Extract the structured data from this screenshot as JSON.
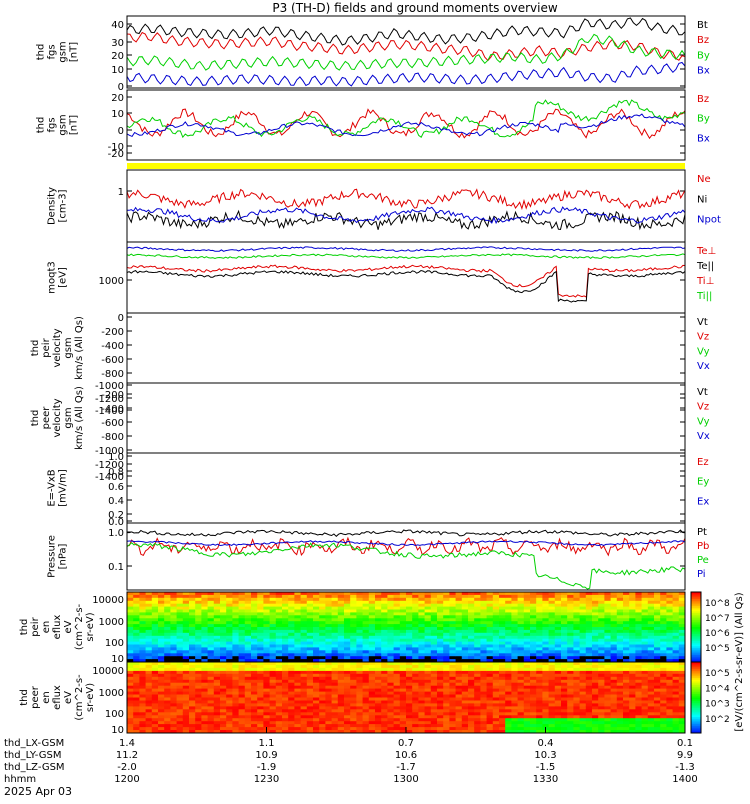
{
  "title": "P3 (TH-D) fields and ground moments overview",
  "date_label": "2025 Apr 03",
  "colors": {
    "black": "#000000",
    "red": "#e00000",
    "green": "#00d000",
    "blue": "#0000d0",
    "yellow": "#ffff00"
  },
  "panels": [
    {
      "id": "fgs-mag",
      "ylabel": [
        "thd",
        "fgs",
        "gsm",
        "[nT]"
      ],
      "yticks": [
        "40",
        "30",
        "20",
        "10",
        "0"
      ],
      "ylim": [
        -2,
        44
      ],
      "legend": [
        {
          "label": "Bt",
          "color": "black"
        },
        {
          "label": "Bz",
          "color": "red"
        },
        {
          "label": "By",
          "color": "green"
        },
        {
          "label": "Bx",
          "color": "blue"
        }
      ]
    },
    {
      "id": "fgs-gsm",
      "ylabel": [
        "thd",
        "fgs",
        "gsm",
        "[nT]"
      ],
      "yticks": [
        "20",
        "10",
        "0",
        "-10",
        "-20"
      ],
      "ylim": [
        -25,
        27
      ],
      "legend": [
        {
          "label": "Bz",
          "color": "red"
        },
        {
          "label": "By",
          "color": "green"
        },
        {
          "label": "Bx",
          "color": "blue"
        }
      ]
    },
    {
      "id": "density",
      "ylabel": [
        "Density",
        "[cm-3]"
      ],
      "yticks": [
        "1"
      ],
      "scale": "log",
      "legend": [
        {
          "label": "Ne",
          "color": "red"
        },
        {
          "label": "Ni",
          "color": "black"
        },
        {
          "label": "Npot",
          "color": "blue"
        }
      ]
    },
    {
      "id": "temperature",
      "ylabel": [
        "moqt3",
        "[eV]"
      ],
      "yticks": [
        "1000"
      ],
      "scale": "log",
      "legend": [
        {
          "label": "Te⊥",
          "color": "red"
        },
        {
          "label": "Te||",
          "color": "black"
        },
        {
          "label": "Ti⊥",
          "color": "red"
        },
        {
          "label": "Ti||",
          "color": "green"
        }
      ]
    },
    {
      "id": "peir-velocity",
      "ylabel": [
        "thd",
        "peir",
        "velocity",
        "gsm",
        "km/s (All Qs)"
      ],
      "yticks": [
        "0",
        "-200",
        "-400",
        "-600",
        "-800",
        "-1000",
        "-1200",
        "-1400"
      ],
      "legend": [
        {
          "label": "Vt",
          "color": "black"
        },
        {
          "label": "Vz",
          "color": "red"
        },
        {
          "label": "Vy",
          "color": "green"
        },
        {
          "label": "Vx",
          "color": "blue"
        }
      ]
    },
    {
      "id": "peer-velocity",
      "ylabel": [
        "thd",
        "peer",
        "velocity",
        "gsm",
        "km/s (All Qs)"
      ],
      "yticks": [
        "-200",
        "-400",
        "-600",
        "-800",
        "-1000",
        "-1200",
        "-1400"
      ],
      "legend": [
        {
          "label": "Vt",
          "color": "black"
        },
        {
          "label": "Vz",
          "color": "red"
        },
        {
          "label": "Vy",
          "color": "green"
        },
        {
          "label": "Vx",
          "color": "blue"
        }
      ]
    },
    {
      "id": "efield",
      "ylabel": [
        "E=-VxB",
        "[mV/m]"
      ],
      "yticks": [
        "1.0",
        "0.8",
        "0.6",
        "0.4",
        "0.2",
        "0.0"
      ],
      "legend": [
        {
          "label": "Ez",
          "color": "red"
        },
        {
          "label": "Ey",
          "color": "green"
        },
        {
          "label": "Ex",
          "color": "blue"
        }
      ]
    },
    {
      "id": "pressure",
      "ylabel": [
        "Pressure",
        "[nPa]"
      ],
      "yticks": [
        "1.0",
        "0.1"
      ],
      "scale": "log",
      "legend": [
        {
          "label": "Pt",
          "color": "black"
        },
        {
          "label": "Pb",
          "color": "red"
        },
        {
          "label": "Pe",
          "color": "green"
        },
        {
          "label": "Pi",
          "color": "blue"
        }
      ]
    },
    {
      "id": "peir-spec",
      "ylabel": [
        "thd",
        "peir",
        "en",
        "eflux",
        "eV",
        "(cm^2-s-",
        "sr-eV)"
      ],
      "yticks": [
        "10000",
        "1000",
        "100",
        "10"
      ]
    },
    {
      "id": "peer-spec",
      "ylabel": [
        "thd",
        "peer",
        "en",
        "eflux",
        "eV",
        "(cm^2-s-",
        "sr-eV)"
      ],
      "yticks": [
        "10000",
        "1000",
        "100",
        "10"
      ]
    }
  ],
  "colorbar": {
    "label": "[eV/(cm^2-s-sr-eV)] (All Qs)",
    "ticks_top": [
      "10^8",
      "10^7",
      "10^6",
      "10^5"
    ],
    "ticks_bottom": [
      "10^5",
      "10^4",
      "10^3",
      "10^2"
    ]
  },
  "x_axis": {
    "rows": [
      {
        "name": "thd_LX-GSM",
        "values": [
          "1.4",
          "1.1",
          "0.7",
          "0.4",
          "0.1"
        ]
      },
      {
        "name": "thd_LY-GSM",
        "values": [
          "11.2",
          "10.9",
          "10.6",
          "10.3",
          "9.9"
        ]
      },
      {
        "name": "thd_LZ-GSM",
        "values": [
          "-2.0",
          "-1.9",
          "-1.7",
          "-1.5",
          "-1.3"
        ]
      },
      {
        "name": "hhmm",
        "values": [
          "1200",
          "1230",
          "1300",
          "1330",
          "1400"
        ]
      }
    ]
  },
  "chart_data": {
    "type": "line",
    "title": "P3 (TH-D) fields and ground moments overview",
    "x_ticks": [
      "1200",
      "1230",
      "1300",
      "1330",
      "1400"
    ],
    "series": [
      {
        "name": "Bt",
        "values": [
          35,
          36,
          34,
          33,
          32,
          33,
          35,
          32,
          30,
          28,
          30,
          33,
          31,
          29,
          30,
          32,
          35,
          34,
          33,
          40,
          38,
          41,
          36,
          34
        ]
      },
      {
        "name": "Bz",
        "values": [
          30,
          31,
          28,
          27,
          26,
          27,
          28,
          25,
          24,
          22,
          24,
          26,
          25,
          23,
          22,
          18,
          20,
          22,
          20,
          24,
          26,
          25,
          20,
          18
        ]
      },
      {
        "name": "By",
        "values": [
          15,
          16,
          14,
          12,
          13,
          14,
          15,
          14,
          13,
          12,
          13,
          14,
          14,
          15,
          16,
          17,
          18,
          16,
          19,
          30,
          28,
          22,
          20,
          19
        ]
      },
      {
        "name": "Bx",
        "values": [
          5,
          4,
          3,
          2,
          3,
          4,
          3,
          2,
          3,
          2,
          3,
          4,
          5,
          4,
          3,
          4,
          6,
          7,
          8,
          5,
          4,
          9,
          10,
          12
        ]
      }
    ]
  }
}
